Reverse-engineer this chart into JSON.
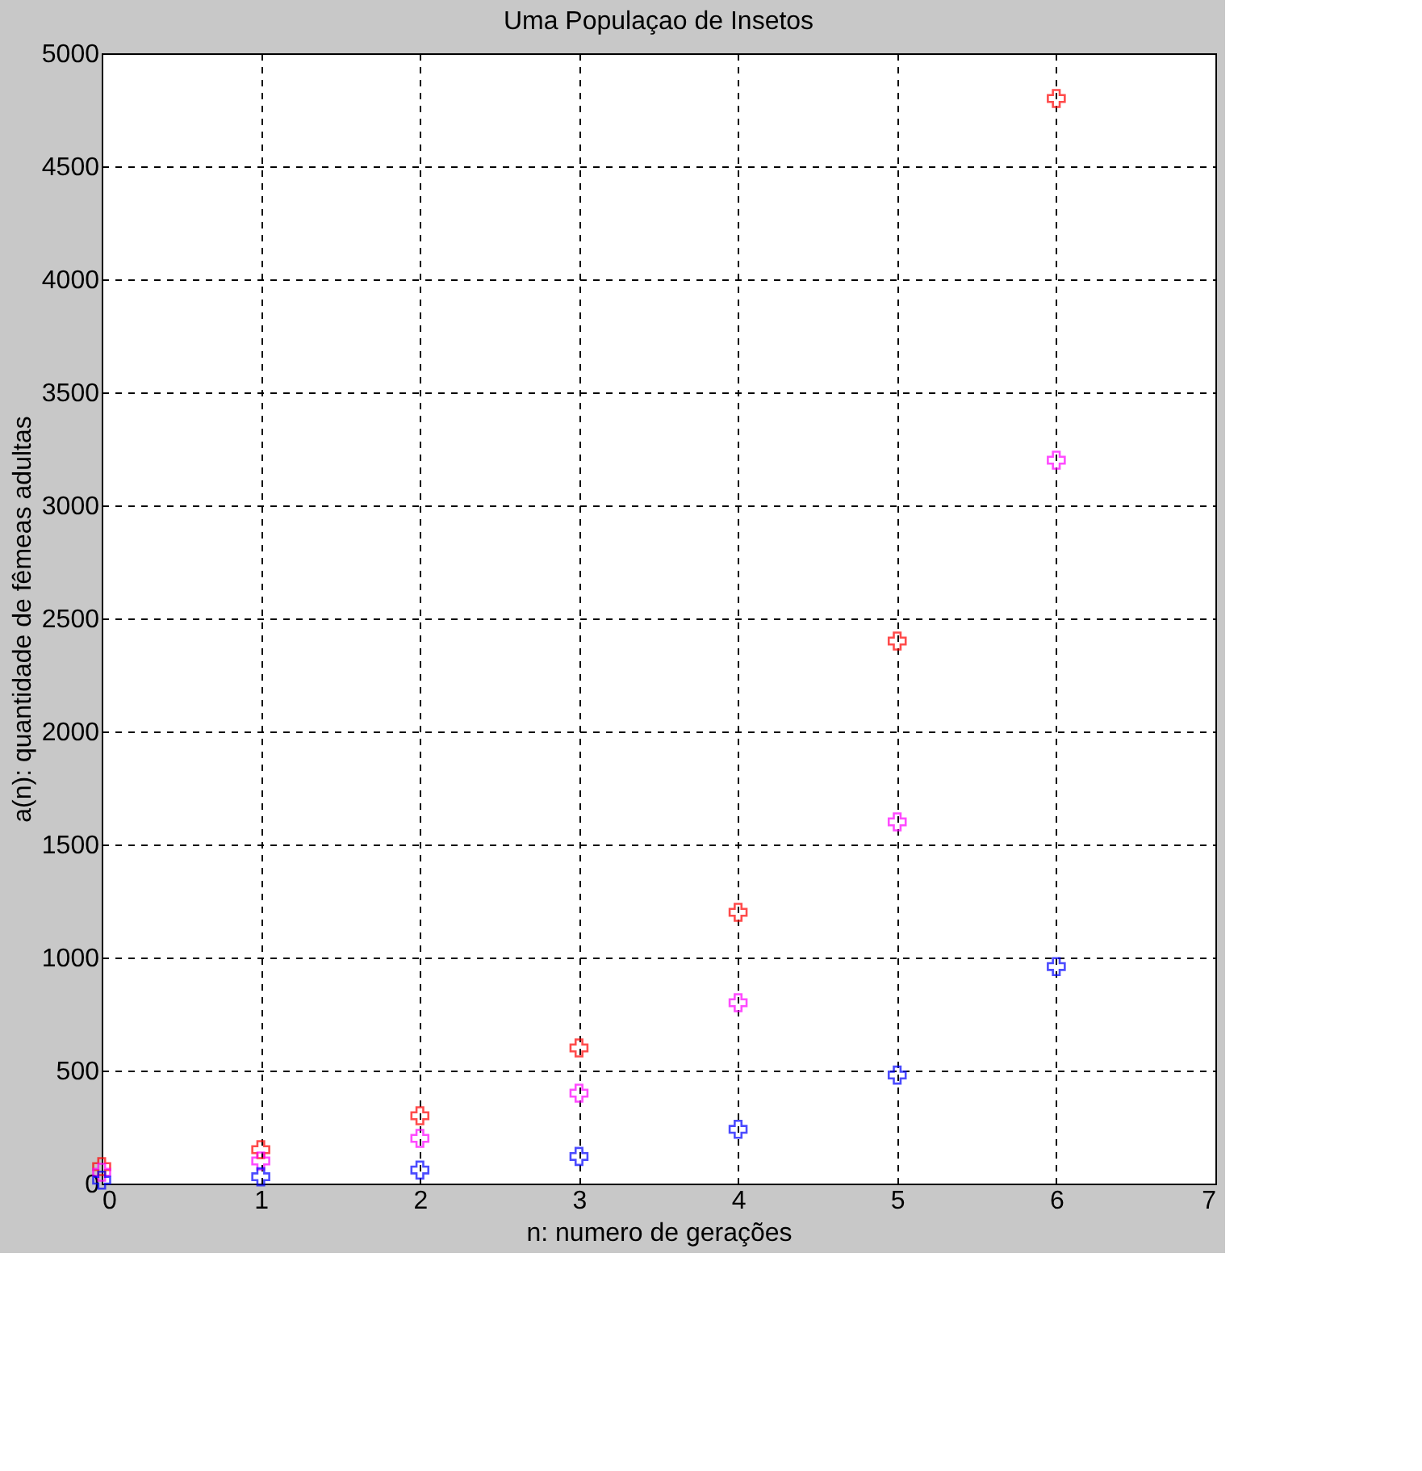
{
  "chart_data": {
    "type": "scatter",
    "title": "Uma Populaçao de Insetos",
    "xlabel": "n: numero de gerações",
    "ylabel": "a(n): quantidade de fêmeas adultas",
    "x": [
      0,
      1,
      2,
      3,
      4,
      5,
      6
    ],
    "series": [
      {
        "color": "#ff0000",
        "values": [
          75,
          150,
          300,
          600,
          1200,
          2400,
          4800
        ]
      },
      {
        "color": "#ff00ff",
        "values": [
          50,
          100,
          200,
          400,
          800,
          1600,
          3200
        ]
      },
      {
        "color": "#0000ff",
        "values": [
          15,
          30,
          60,
          120,
          240,
          480,
          960
        ]
      }
    ],
    "xlim": [
      0,
      7
    ],
    "xticks": [
      0,
      1,
      2,
      3,
      4,
      5,
      6,
      7
    ],
    "ylim": [
      0,
      5000
    ],
    "yticks": [
      0,
      500,
      1000,
      1500,
      2000,
      2500,
      3000,
      3500,
      4000,
      4500,
      5000
    ],
    "grid": true,
    "marker": "cross"
  }
}
